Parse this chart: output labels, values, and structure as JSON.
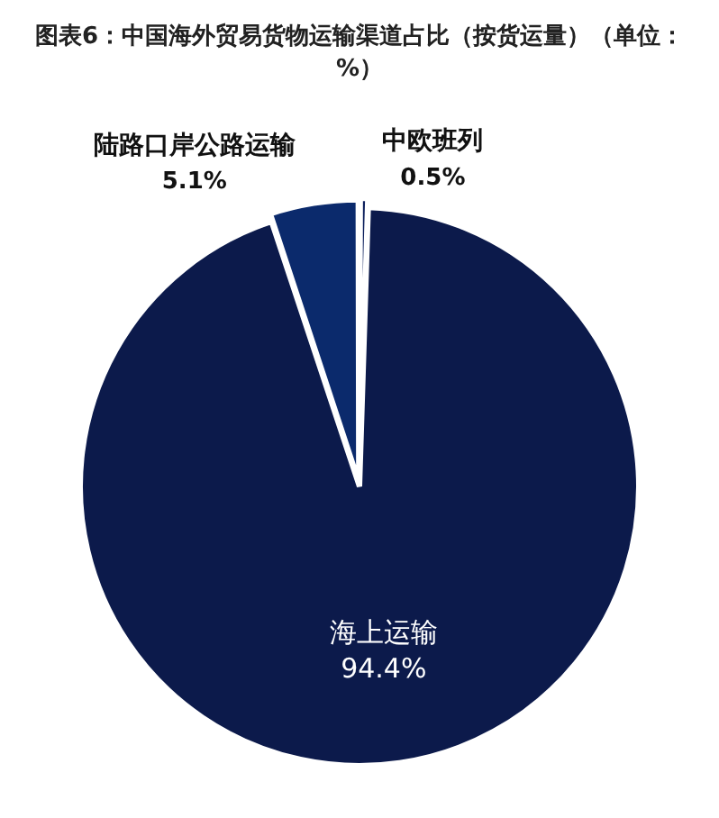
{
  "chart_data": {
    "type": "pie",
    "title": "图表6：中国海外贸易货物运输渠道占比（按货运量）（单位：%）",
    "categories": [
      "中欧班列",
      "海上运输",
      "陆路口岸公路运输"
    ],
    "values": [
      0.5,
      94.4,
      5.1
    ],
    "colors": [
      "#0c1f5c",
      "#0c1a4b",
      "#0b2a6c"
    ],
    "value_labels": [
      "0.5%",
      "94.4%",
      "5.1%"
    ],
    "legend": false
  }
}
